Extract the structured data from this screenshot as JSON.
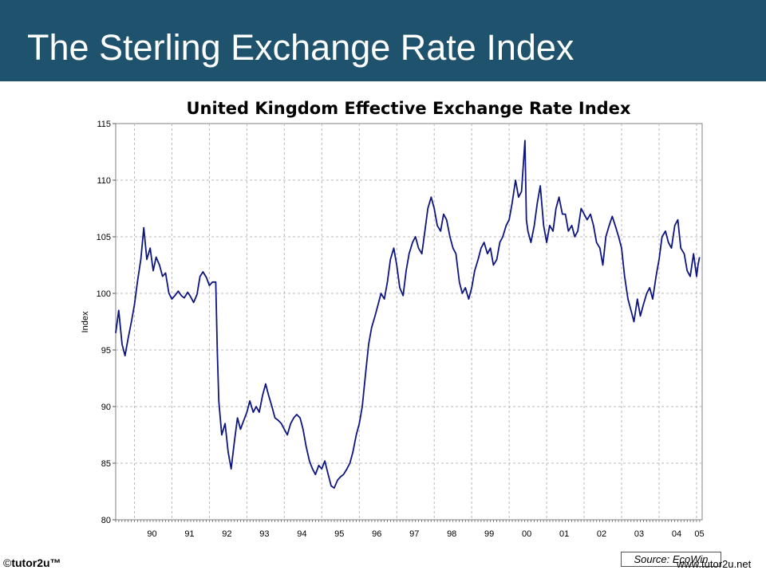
{
  "slide": {
    "title": "The Sterling Exchange Rate Index"
  },
  "footer": {
    "copyright_symbol": "©",
    "brand": "tutor2u™",
    "website": "www.tutor2u.net",
    "source": "Source: EcoWin"
  },
  "chart_data": {
    "type": "line",
    "title": "United Kingdom Effective Exchange Rate Index",
    "xlabel": "",
    "ylabel": "Index",
    "ylim": [
      80,
      115
    ],
    "xlim": [
      1989.5,
      2005.15
    ],
    "yticks": [
      80,
      85,
      90,
      95,
      100,
      105,
      110,
      115
    ],
    "xticks": [
      {
        "year": 1990,
        "label": "90"
      },
      {
        "year": 1991,
        "label": "91"
      },
      {
        "year": 1992,
        "label": "92"
      },
      {
        "year": 1993,
        "label": "93"
      },
      {
        "year": 1994,
        "label": "94"
      },
      {
        "year": 1995,
        "label": "95"
      },
      {
        "year": 1996,
        "label": "96"
      },
      {
        "year": 1997,
        "label": "97"
      },
      {
        "year": 1998,
        "label": "98"
      },
      {
        "year": 1999,
        "label": "99"
      },
      {
        "year": 2000,
        "label": "00"
      },
      {
        "year": 2001,
        "label": "01"
      },
      {
        "year": 2002,
        "label": "02"
      },
      {
        "year": 2003,
        "label": "03"
      },
      {
        "year": 2004,
        "label": "04"
      },
      {
        "year": 2005,
        "label": "05"
      }
    ],
    "grid": true,
    "line_color": "#0d1580",
    "series": [
      {
        "name": "",
        "points": [
          [
            1989.5,
            96.5
          ],
          [
            1989.58,
            98.5
          ],
          [
            1989.67,
            95.5
          ],
          [
            1989.75,
            94.5
          ],
          [
            1989.83,
            96.0
          ],
          [
            1989.92,
            97.5
          ],
          [
            1990.0,
            99.0
          ],
          [
            1990.08,
            101.0
          ],
          [
            1990.17,
            103.0
          ],
          [
            1990.25,
            105.8
          ],
          [
            1990.33,
            103.0
          ],
          [
            1990.42,
            104.0
          ],
          [
            1990.5,
            102.0
          ],
          [
            1990.58,
            103.2
          ],
          [
            1990.67,
            102.5
          ],
          [
            1990.75,
            101.5
          ],
          [
            1990.83,
            101.8
          ],
          [
            1990.92,
            100.0
          ],
          [
            1991.0,
            99.5
          ],
          [
            1991.08,
            99.8
          ],
          [
            1991.17,
            100.2
          ],
          [
            1991.25,
            99.8
          ],
          [
            1991.33,
            99.6
          ],
          [
            1991.42,
            100.1
          ],
          [
            1991.5,
            99.7
          ],
          [
            1991.58,
            99.2
          ],
          [
            1991.67,
            99.9
          ],
          [
            1991.75,
            101.5
          ],
          [
            1991.83,
            101.9
          ],
          [
            1991.92,
            101.4
          ],
          [
            1992.0,
            100.7
          ],
          [
            1992.08,
            101.0
          ],
          [
            1992.17,
            101.0
          ],
          [
            1992.21,
            95.0
          ],
          [
            1992.25,
            90.5
          ],
          [
            1992.33,
            87.5
          ],
          [
            1992.42,
            88.5
          ],
          [
            1992.5,
            86.0
          ],
          [
            1992.58,
            84.5
          ],
          [
            1992.67,
            87.0
          ],
          [
            1992.75,
            89.0
          ],
          [
            1992.83,
            88.0
          ],
          [
            1992.92,
            88.8
          ],
          [
            1993.0,
            89.5
          ],
          [
            1993.08,
            90.5
          ],
          [
            1993.17,
            89.5
          ],
          [
            1993.25,
            90.0
          ],
          [
            1993.33,
            89.5
          ],
          [
            1993.42,
            91.0
          ],
          [
            1993.5,
            92.0
          ],
          [
            1993.58,
            91.0
          ],
          [
            1993.67,
            90.0
          ],
          [
            1993.75,
            89.0
          ],
          [
            1993.83,
            88.8
          ],
          [
            1993.92,
            88.5
          ],
          [
            1994.0,
            88.0
          ],
          [
            1994.08,
            87.5
          ],
          [
            1994.17,
            88.5
          ],
          [
            1994.25,
            89.0
          ],
          [
            1994.33,
            89.3
          ],
          [
            1994.42,
            89.0
          ],
          [
            1994.5,
            88.0
          ],
          [
            1994.58,
            86.5
          ],
          [
            1994.67,
            85.2
          ],
          [
            1994.75,
            84.5
          ],
          [
            1994.83,
            84.0
          ],
          [
            1994.92,
            84.8
          ],
          [
            1995.0,
            84.5
          ],
          [
            1995.08,
            85.2
          ],
          [
            1995.17,
            84.0
          ],
          [
            1995.25,
            83.0
          ],
          [
            1995.33,
            82.8
          ],
          [
            1995.42,
            83.5
          ],
          [
            1995.5,
            83.8
          ],
          [
            1995.58,
            84.0
          ],
          [
            1995.67,
            84.5
          ],
          [
            1995.75,
            85.0
          ],
          [
            1995.83,
            86.0
          ],
          [
            1995.92,
            87.5
          ],
          [
            1996.0,
            88.5
          ],
          [
            1996.08,
            90.0
          ],
          [
            1996.17,
            93.0
          ],
          [
            1996.25,
            95.5
          ],
          [
            1996.33,
            97.0
          ],
          [
            1996.42,
            98.0
          ],
          [
            1996.5,
            99.0
          ],
          [
            1996.58,
            100.0
          ],
          [
            1996.67,
            99.5
          ],
          [
            1996.75,
            101.0
          ],
          [
            1996.83,
            103.0
          ],
          [
            1996.92,
            104.0
          ],
          [
            1997.0,
            102.5
          ],
          [
            1997.08,
            100.5
          ],
          [
            1997.17,
            99.8
          ],
          [
            1997.25,
            102.0
          ],
          [
            1997.33,
            103.5
          ],
          [
            1997.42,
            104.5
          ],
          [
            1997.5,
            105.0
          ],
          [
            1997.58,
            104.0
          ],
          [
            1997.67,
            103.5
          ],
          [
            1997.75,
            105.5
          ],
          [
            1997.83,
            107.5
          ],
          [
            1997.92,
            108.5
          ],
          [
            1998.0,
            107.5
          ],
          [
            1998.08,
            106.0
          ],
          [
            1998.17,
            105.5
          ],
          [
            1998.25,
            107.0
          ],
          [
            1998.33,
            106.5
          ],
          [
            1998.42,
            105.0
          ],
          [
            1998.5,
            104.0
          ],
          [
            1998.58,
            103.5
          ],
          [
            1998.67,
            101.0
          ],
          [
            1998.75,
            100.0
          ],
          [
            1998.83,
            100.5
          ],
          [
            1998.92,
            99.5
          ],
          [
            1999.0,
            100.5
          ],
          [
            1999.08,
            102.0
          ],
          [
            1999.17,
            103.0
          ],
          [
            1999.25,
            104.0
          ],
          [
            1999.33,
            104.5
          ],
          [
            1999.42,
            103.5
          ],
          [
            1999.5,
            104.0
          ],
          [
            1999.58,
            102.5
          ],
          [
            1999.67,
            103.0
          ],
          [
            1999.75,
            104.5
          ],
          [
            1999.83,
            105.0
          ],
          [
            1999.92,
            106.0
          ],
          [
            2000.0,
            106.5
          ],
          [
            2000.08,
            108.0
          ],
          [
            2000.17,
            110.0
          ],
          [
            2000.25,
            108.5
          ],
          [
            2000.33,
            109.0
          ],
          [
            2000.42,
            113.5
          ],
          [
            2000.46,
            106.5
          ],
          [
            2000.5,
            105.5
          ],
          [
            2000.58,
            104.5
          ],
          [
            2000.67,
            106.0
          ],
          [
            2000.75,
            108.0
          ],
          [
            2000.83,
            109.5
          ],
          [
            2000.92,
            106.0
          ],
          [
            2001.0,
            104.5
          ],
          [
            2001.08,
            106.0
          ],
          [
            2001.17,
            105.5
          ],
          [
            2001.25,
            107.5
          ],
          [
            2001.33,
            108.5
          ],
          [
            2001.42,
            107.0
          ],
          [
            2001.5,
            107.0
          ],
          [
            2001.58,
            105.5
          ],
          [
            2001.67,
            106.0
          ],
          [
            2001.75,
            105.0
          ],
          [
            2001.83,
            105.5
          ],
          [
            2001.92,
            107.5
          ],
          [
            2002.0,
            107.0
          ],
          [
            2002.08,
            106.5
          ],
          [
            2002.17,
            107.0
          ],
          [
            2002.25,
            106.0
          ],
          [
            2002.33,
            104.5
          ],
          [
            2002.42,
            104.0
          ],
          [
            2002.5,
            102.5
          ],
          [
            2002.58,
            105.0
          ],
          [
            2002.67,
            106.0
          ],
          [
            2002.75,
            106.8
          ],
          [
            2002.83,
            106.0
          ],
          [
            2002.92,
            105.0
          ],
          [
            2003.0,
            104.0
          ],
          [
            2003.08,
            101.5
          ],
          [
            2003.17,
            99.5
          ],
          [
            2003.25,
            98.5
          ],
          [
            2003.33,
            97.5
          ],
          [
            2003.42,
            99.5
          ],
          [
            2003.5,
            98.0
          ],
          [
            2003.58,
            99.0
          ],
          [
            2003.67,
            100.0
          ],
          [
            2003.75,
            100.5
          ],
          [
            2003.83,
            99.5
          ],
          [
            2003.92,
            101.5
          ],
          [
            2004.0,
            103.0
          ],
          [
            2004.08,
            105.0
          ],
          [
            2004.17,
            105.5
          ],
          [
            2004.25,
            104.5
          ],
          [
            2004.33,
            104.0
          ],
          [
            2004.42,
            106.0
          ],
          [
            2004.5,
            106.5
          ],
          [
            2004.58,
            104.0
          ],
          [
            2004.67,
            103.5
          ],
          [
            2004.75,
            102.0
          ],
          [
            2004.83,
            101.5
          ],
          [
            2004.92,
            103.5
          ],
          [
            2005.0,
            101.5
          ],
          [
            2005.04,
            102.5
          ],
          [
            2005.08,
            103.2
          ]
        ]
      }
    ]
  }
}
